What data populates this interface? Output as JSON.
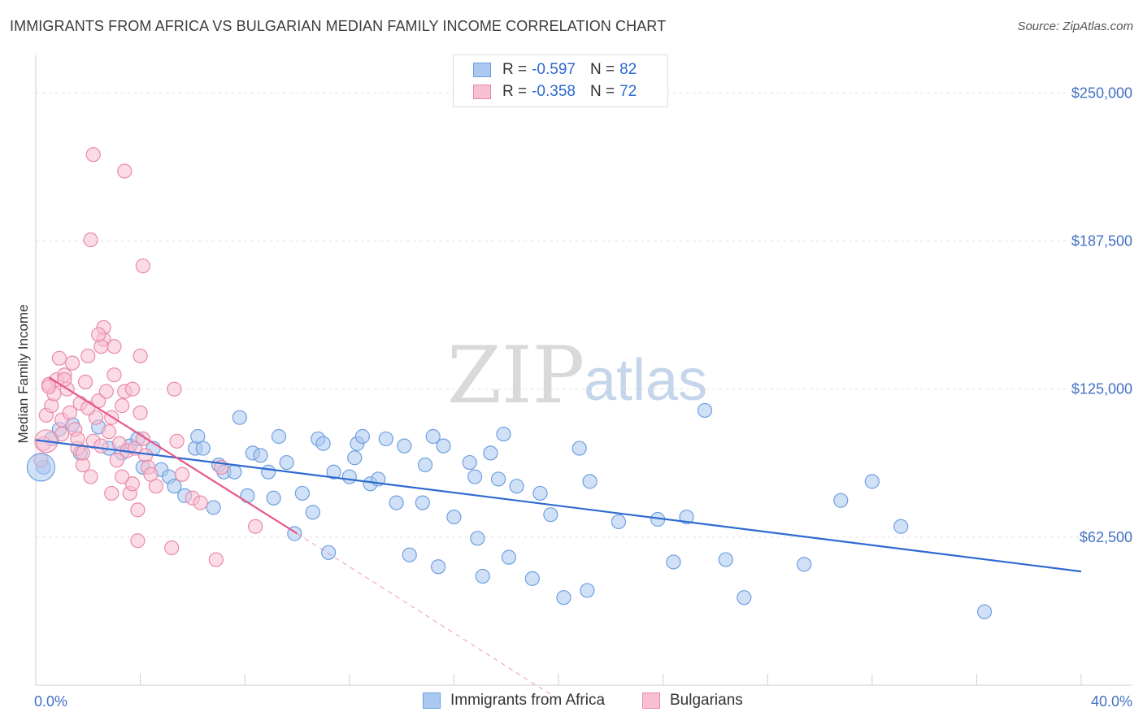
{
  "title": "IMMIGRANTS FROM AFRICA VS BULGARIAN MEDIAN FAMILY INCOME CORRELATION CHART",
  "source_label": "Source: ZipAtlas.com",
  "watermark": {
    "zip": "ZIP",
    "atlas": "atlas"
  },
  "legend": {
    "rows": [
      {
        "r_label": "R =",
        "r_value": "-0.597",
        "n_label": "N =",
        "n_value": "82",
        "color": "#aac8f0",
        "border": "#6f9fdf"
      },
      {
        "r_label": "R =",
        "r_value": "-0.358",
        "n_label": "N =",
        "n_value": "72",
        "color": "#f8bfd1",
        "border": "#e98aa9"
      }
    ]
  },
  "bottom_legend": [
    {
      "label": "Immigrants from Africa",
      "color": "#aac8f0",
      "border": "#6f9fdf"
    },
    {
      "label": "Bulgarians",
      "color": "#f8bfd1",
      "border": "#e98aa9"
    }
  ],
  "chart_data": {
    "type": "scatter",
    "title": "IMMIGRANTS FROM AFRICA VS BULGARIAN MEDIAN FAMILY INCOME CORRELATION CHART",
    "xlabel": "",
    "ylabel": "Median Family Income",
    "xlim": [
      0,
      40
    ],
    "ylim": [
      0,
      262500
    ],
    "x_tick_labels": [
      "0.0%",
      "40.0%"
    ],
    "y_ticks": [
      62500,
      125000,
      187500,
      250000
    ],
    "y_tick_labels": [
      "$62,500",
      "$125,000",
      "$187,500",
      "$250,000"
    ],
    "grid": true,
    "legend_position": "top-center",
    "series": [
      {
        "name": "Immigrants from Africa",
        "color": "#6f9fdf",
        "fill": "#aac8f0",
        "trend": {
          "x": [
            0,
            40
          ],
          "y": [
            103500,
            48000
          ],
          "color": "#2e6ad0"
        },
        "points": [
          [
            0.3,
            92000
          ],
          [
            0.6,
            104000
          ],
          [
            0.9,
            108000
          ],
          [
            1.4,
            110000
          ],
          [
            1.7,
            98000
          ],
          [
            2.4,
            109000
          ],
          [
            2.8,
            100000
          ],
          [
            3.3,
            98000
          ],
          [
            3.6,
            101000
          ],
          [
            3.9,
            104000
          ],
          [
            4.1,
            92000
          ],
          [
            4.5,
            100000
          ],
          [
            4.8,
            91000
          ],
          [
            5.1,
            88000
          ],
          [
            5.3,
            84000
          ],
          [
            5.7,
            80000
          ],
          [
            6.1,
            100000
          ],
          [
            6.2,
            105000
          ],
          [
            6.4,
            100000
          ],
          [
            6.8,
            75000
          ],
          [
            7.0,
            93000
          ],
          [
            7.2,
            90000
          ],
          [
            7.6,
            90000
          ],
          [
            7.8,
            113000
          ],
          [
            8.1,
            80000
          ],
          [
            8.3,
            98000
          ],
          [
            8.6,
            97000
          ],
          [
            8.9,
            90000
          ],
          [
            9.1,
            79000
          ],
          [
            9.3,
            105000
          ],
          [
            9.6,
            94000
          ],
          [
            9.9,
            64000
          ],
          [
            10.2,
            81000
          ],
          [
            10.6,
            73000
          ],
          [
            10.8,
            104000
          ],
          [
            11.0,
            102000
          ],
          [
            11.4,
            90000
          ],
          [
            12.0,
            88000
          ],
          [
            12.2,
            96000
          ],
          [
            12.3,
            102000
          ],
          [
            12.5,
            105000
          ],
          [
            12.8,
            85000
          ],
          [
            13.1,
            87000
          ],
          [
            13.4,
            104000
          ],
          [
            13.8,
            77000
          ],
          [
            14.1,
            101000
          ],
          [
            14.3,
            55000
          ],
          [
            14.8,
            77000
          ],
          [
            14.9,
            93000
          ],
          [
            15.2,
            105000
          ],
          [
            15.6,
            101000
          ],
          [
            15.4,
            50000
          ],
          [
            16.0,
            71000
          ],
          [
            16.6,
            94000
          ],
          [
            16.9,
            62000
          ],
          [
            17.1,
            46000
          ],
          [
            17.4,
            98000
          ],
          [
            17.7,
            87000
          ],
          [
            17.9,
            106000
          ],
          [
            18.1,
            54000
          ],
          [
            18.4,
            84000
          ],
          [
            19.3,
            81000
          ],
          [
            19.7,
            72000
          ],
          [
            20.2,
            37000
          ],
          [
            20.8,
            100000
          ],
          [
            21.2,
            86000
          ],
          [
            21.1,
            40000
          ],
          [
            22.3,
            69000
          ],
          [
            23.8,
            70000
          ],
          [
            24.4,
            52000
          ],
          [
            24.9,
            71000
          ],
          [
            26.4,
            53000
          ],
          [
            27.1,
            37000
          ],
          [
            29.4,
            51000
          ],
          [
            30.8,
            78000
          ],
          [
            32.0,
            86000
          ],
          [
            33.1,
            67000
          ],
          [
            36.3,
            31000
          ],
          [
            25.6,
            116000
          ],
          [
            16.8,
            88000
          ],
          [
            11.2,
            56000
          ],
          [
            19.0,
            45000
          ]
        ]
      },
      {
        "name": "Bulgarians",
        "color": "#e98aa9",
        "fill": "#f8bfd1",
        "trend": {
          "x": [
            0.5,
            10.0
          ],
          "y": [
            130000,
            64000
          ],
          "color": "#e8588a"
        },
        "trend_extension": {
          "x": [
            10.0,
            20.0
          ],
          "y": [
            64000,
            -6000
          ]
        },
        "points": [
          [
            0.2,
            95000
          ],
          [
            0.4,
            114000
          ],
          [
            0.5,
            127000
          ],
          [
            0.6,
            118000
          ],
          [
            0.7,
            123000
          ],
          [
            0.8,
            129000
          ],
          [
            0.9,
            138000
          ],
          [
            1.0,
            112000
          ],
          [
            1.1,
            131000
          ],
          [
            1.2,
            125000
          ],
          [
            1.3,
            115000
          ],
          [
            1.5,
            108000
          ],
          [
            1.6,
            100000
          ],
          [
            1.7,
            119000
          ],
          [
            1.8,
            93000
          ],
          [
            1.9,
            128000
          ],
          [
            2.0,
            139000
          ],
          [
            2.1,
            88000
          ],
          [
            2.2,
            103000
          ],
          [
            2.3,
            113000
          ],
          [
            2.4,
            120000
          ],
          [
            2.5,
            101000
          ],
          [
            2.6,
            146000
          ],
          [
            2.7,
            124000
          ],
          [
            2.8,
            107000
          ],
          [
            2.9,
            113000
          ],
          [
            3.0,
            131000
          ],
          [
            3.1,
            95000
          ],
          [
            3.2,
            102000
          ],
          [
            3.3,
            118000
          ],
          [
            3.4,
            124000
          ],
          [
            3.5,
            99000
          ],
          [
            3.6,
            81000
          ],
          [
            3.7,
            85000
          ],
          [
            3.8,
            100000
          ],
          [
            3.9,
            74000
          ],
          [
            4.0,
            115000
          ],
          [
            4.1,
            104000
          ],
          [
            4.2,
            97000
          ],
          [
            4.3,
            92000
          ],
          [
            4.4,
            89000
          ],
          [
            2.2,
            224000
          ],
          [
            3.4,
            217000
          ],
          [
            2.1,
            188000
          ],
          [
            4.1,
            177000
          ],
          [
            2.6,
            151000
          ],
          [
            4.0,
            139000
          ],
          [
            3.0,
            143000
          ],
          [
            3.7,
            125000
          ],
          [
            5.3,
            125000
          ],
          [
            5.4,
            103000
          ],
          [
            5.6,
            89000
          ],
          [
            6.0,
            79000
          ],
          [
            6.3,
            77000
          ],
          [
            6.9,
            53000
          ],
          [
            7.1,
            92000
          ],
          [
            8.4,
            67000
          ],
          [
            3.9,
            61000
          ],
          [
            5.2,
            58000
          ],
          [
            1.1,
            129000
          ],
          [
            1.4,
            136000
          ],
          [
            2.5,
            143000
          ],
          [
            2.0,
            117000
          ],
          [
            1.6,
            104000
          ],
          [
            2.9,
            81000
          ],
          [
            0.3,
            102000
          ],
          [
            1.0,
            106000
          ],
          [
            1.8,
            98000
          ],
          [
            3.3,
            88000
          ],
          [
            4.6,
            84000
          ],
          [
            0.5,
            126000
          ],
          [
            2.4,
            148000
          ]
        ]
      }
    ]
  }
}
